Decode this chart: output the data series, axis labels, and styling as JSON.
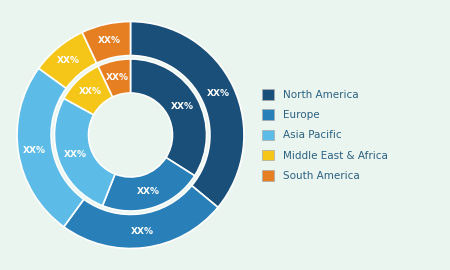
{
  "regions": [
    "North America",
    "Europe",
    "Asia Pacific",
    "Middle East & Africa",
    "South America"
  ],
  "outer_values": [
    36,
    24,
    25,
    8,
    7
  ],
  "inner_values": [
    34,
    22,
    27,
    10,
    7
  ],
  "colors_outer": [
    "#1a4f7a",
    "#2980b9",
    "#5dbbe8",
    "#f5c518",
    "#e67e22"
  ],
  "colors_inner": [
    "#1a4f7a",
    "#2980b9",
    "#5dbbe8",
    "#f5c518",
    "#e67e22"
  ],
  "legend_colors": [
    "#1a4f7a",
    "#2980b9",
    "#5dbbe8",
    "#f5c518",
    "#e67e22"
  ],
  "background_color": "#eaf5f0",
  "label_color": "#ffffff",
  "label_fontsize": 6.5,
  "legend_fontsize": 7.5,
  "legend_labelcolor": "#2c6080"
}
